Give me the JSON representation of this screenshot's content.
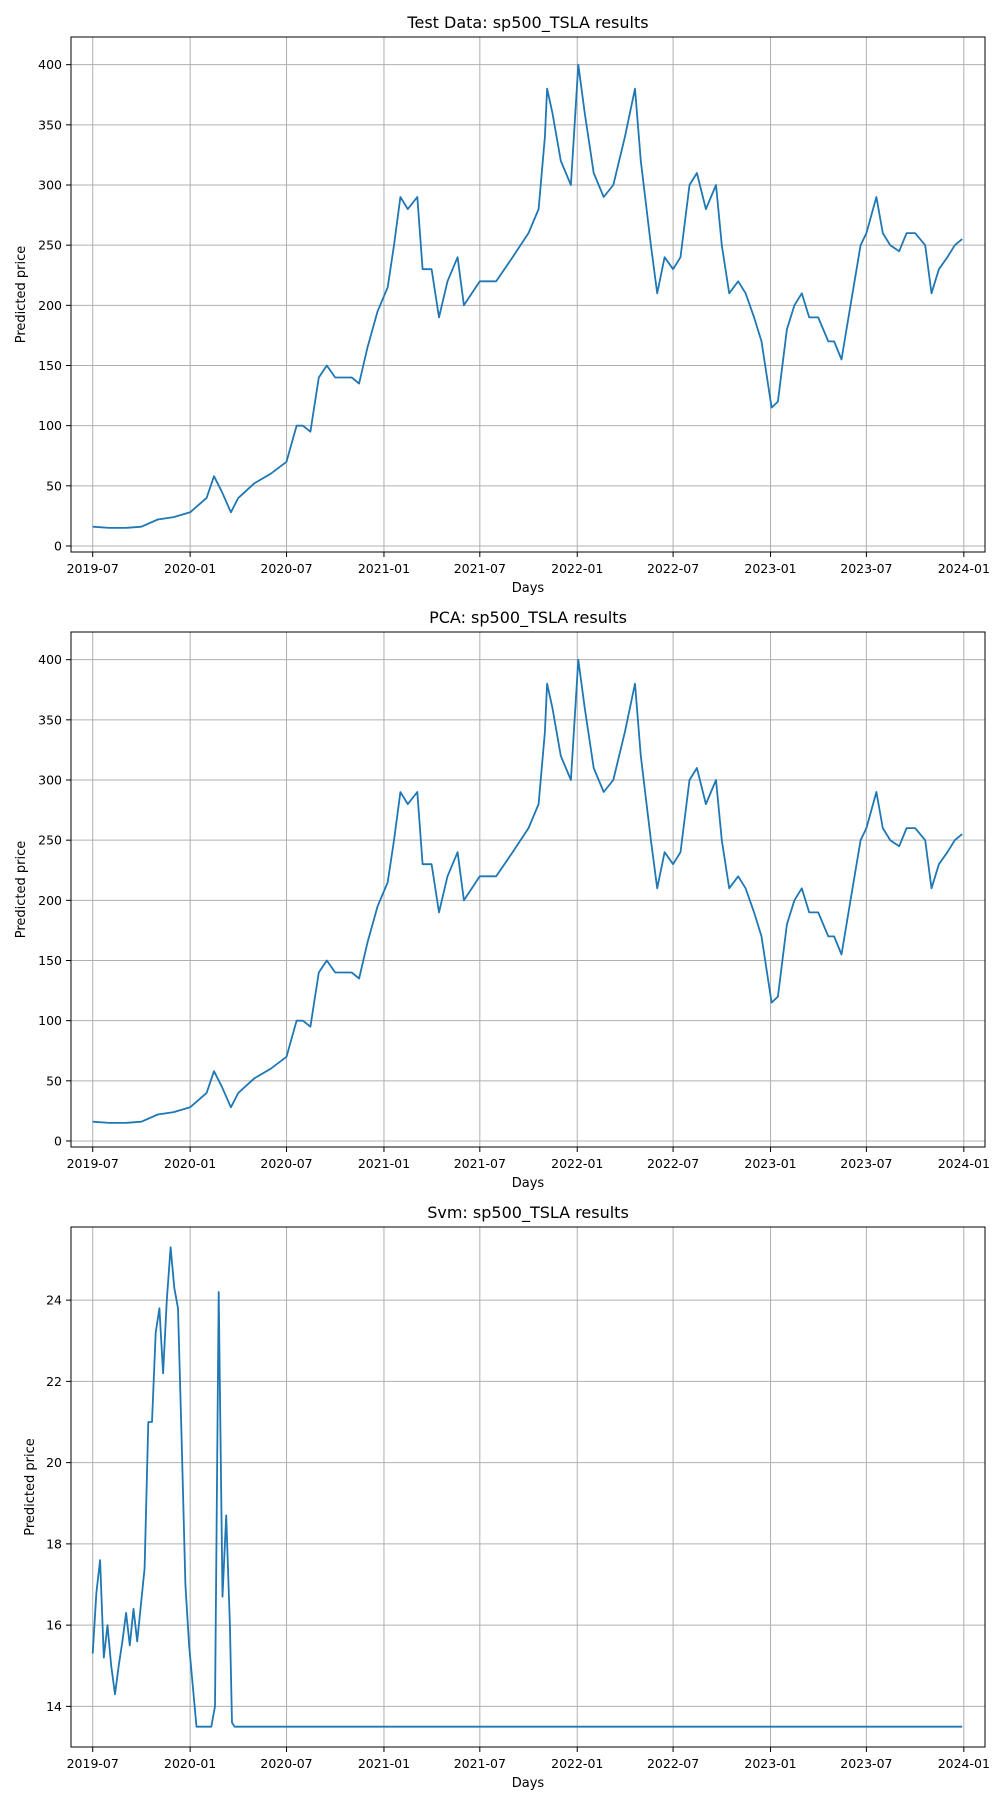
{
  "chart_data": [
    {
      "type": "line",
      "title": "Test Data: sp500_TSLA results",
      "xlabel": "Days",
      "ylabel": "Predicted price",
      "grid": true,
      "x_range": [
        "2019-05-21",
        "2024-02-10"
      ],
      "y_range": [
        -5,
        423
      ],
      "x_ticks": [
        "2019-07",
        "2020-01",
        "2020-07",
        "2021-01",
        "2021-07",
        "2022-01",
        "2022-07",
        "2023-01",
        "2023-07",
        "2024-01"
      ],
      "y_ticks": [
        0,
        50,
        100,
        150,
        200,
        250,
        300,
        350,
        400
      ],
      "series": [
        {
          "color": "#1f77b4",
          "x": [
            "2019-07-01",
            "2019-08-01",
            "2019-09-01",
            "2019-10-01",
            "2019-11-01",
            "2019-12-01",
            "2020-01-01",
            "2020-02-01",
            "2020-02-15",
            "2020-03-01",
            "2020-03-18",
            "2020-04-01",
            "2020-05-01",
            "2020-06-01",
            "2020-07-01",
            "2020-07-20",
            "2020-08-01",
            "2020-08-15",
            "2020-08-31",
            "2020-09-15",
            "2020-10-01",
            "2020-11-01",
            "2020-11-15",
            "2020-12-01",
            "2020-12-20",
            "2021-01-08",
            "2021-01-20",
            "2021-02-01",
            "2021-02-15",
            "2021-03-05",
            "2021-03-15",
            "2021-04-01",
            "2021-04-15",
            "2021-05-01",
            "2021-05-20",
            "2021-06-01",
            "2021-07-01",
            "2021-08-01",
            "2021-09-01",
            "2021-10-01",
            "2021-10-20",
            "2021-11-01",
            "2021-11-05",
            "2021-11-15",
            "2021-12-01",
            "2021-12-20",
            "2022-01-03",
            "2022-01-15",
            "2022-02-01",
            "2022-02-20",
            "2022-03-10",
            "2022-04-01",
            "2022-04-20",
            "2022-05-01",
            "2022-05-20",
            "2022-06-01",
            "2022-06-15",
            "2022-07-01",
            "2022-07-15",
            "2022-08-01",
            "2022-08-15",
            "2022-09-01",
            "2022-09-20",
            "2022-10-01",
            "2022-10-15",
            "2022-11-01",
            "2022-11-15",
            "2022-12-01",
            "2022-12-15",
            "2023-01-03",
            "2023-01-15",
            "2023-02-01",
            "2023-02-15",
            "2023-03-01",
            "2023-03-15",
            "2023-04-01",
            "2023-04-20",
            "2023-05-01",
            "2023-05-15",
            "2023-06-01",
            "2023-06-20",
            "2023-07-01",
            "2023-07-20",
            "2023-08-01",
            "2023-08-15",
            "2023-09-01",
            "2023-09-15",
            "2023-10-01",
            "2023-10-20",
            "2023-11-01",
            "2023-11-15",
            "2023-12-01",
            "2023-12-15",
            "2023-12-29"
          ],
          "y": [
            16,
            15,
            15,
            16,
            22,
            24,
            28,
            40,
            58,
            45,
            28,
            40,
            52,
            60,
            70,
            100,
            100,
            95,
            140,
            150,
            140,
            140,
            135,
            165,
            195,
            215,
            250,
            290,
            280,
            290,
            230,
            230,
            190,
            220,
            240,
            200,
            220,
            220,
            240,
            260,
            280,
            340,
            380,
            360,
            320,
            300,
            400,
            360,
            310,
            290,
            300,
            340,
            380,
            320,
            250,
            210,
            240,
            230,
            240,
            300,
            310,
            280,
            300,
            250,
            210,
            220,
            210,
            190,
            170,
            115,
            120,
            180,
            200,
            210,
            190,
            190,
            170,
            170,
            155,
            200,
            250,
            260,
            290,
            260,
            250,
            245,
            260,
            260,
            250,
            210,
            230,
            240,
            250,
            255
          ]
        }
      ]
    },
    {
      "type": "line",
      "title": "PCA: sp500_TSLA results",
      "xlabel": "Days",
      "ylabel": "Predicted price",
      "grid": true,
      "x_range": [
        "2019-05-21",
        "2024-02-10"
      ],
      "y_range": [
        -5,
        423
      ],
      "x_ticks": [
        "2019-07",
        "2020-01",
        "2020-07",
        "2021-01",
        "2021-07",
        "2022-01",
        "2022-07",
        "2023-01",
        "2023-07",
        "2024-01"
      ],
      "y_ticks": [
        0,
        50,
        100,
        150,
        200,
        250,
        300,
        350,
        400
      ],
      "series": [
        {
          "color": "#1f77b4",
          "x": [
            "2019-07-01",
            "2019-08-01",
            "2019-09-01",
            "2019-10-01",
            "2019-11-01",
            "2019-12-01",
            "2020-01-01",
            "2020-02-01",
            "2020-02-15",
            "2020-03-01",
            "2020-03-18",
            "2020-04-01",
            "2020-05-01",
            "2020-06-01",
            "2020-07-01",
            "2020-07-20",
            "2020-08-01",
            "2020-08-15",
            "2020-08-31",
            "2020-09-15",
            "2020-10-01",
            "2020-11-01",
            "2020-11-15",
            "2020-12-01",
            "2020-12-20",
            "2021-01-08",
            "2021-01-20",
            "2021-02-01",
            "2021-02-15",
            "2021-03-05",
            "2021-03-15",
            "2021-04-01",
            "2021-04-15",
            "2021-05-01",
            "2021-05-20",
            "2021-06-01",
            "2021-07-01",
            "2021-08-01",
            "2021-09-01",
            "2021-10-01",
            "2021-10-20",
            "2021-11-01",
            "2021-11-05",
            "2021-11-15",
            "2021-12-01",
            "2021-12-20",
            "2022-01-03",
            "2022-01-15",
            "2022-02-01",
            "2022-02-20",
            "2022-03-10",
            "2022-04-01",
            "2022-04-20",
            "2022-05-01",
            "2022-05-20",
            "2022-06-01",
            "2022-06-15",
            "2022-07-01",
            "2022-07-15",
            "2022-08-01",
            "2022-08-15",
            "2022-09-01",
            "2022-09-20",
            "2022-10-01",
            "2022-10-15",
            "2022-11-01",
            "2022-11-15",
            "2022-12-01",
            "2022-12-15",
            "2023-01-03",
            "2023-01-15",
            "2023-02-01",
            "2023-02-15",
            "2023-03-01",
            "2023-03-15",
            "2023-04-01",
            "2023-04-20",
            "2023-05-01",
            "2023-05-15",
            "2023-06-01",
            "2023-06-20",
            "2023-07-01",
            "2023-07-20",
            "2023-08-01",
            "2023-08-15",
            "2023-09-01",
            "2023-09-15",
            "2023-10-01",
            "2023-10-20",
            "2023-11-01",
            "2023-11-15",
            "2023-12-01",
            "2023-12-15",
            "2023-12-29"
          ],
          "y": [
            16,
            15,
            15,
            16,
            22,
            24,
            28,
            40,
            58,
            45,
            28,
            40,
            52,
            60,
            70,
            100,
            100,
            95,
            140,
            150,
            140,
            140,
            135,
            165,
            195,
            215,
            250,
            290,
            280,
            290,
            230,
            230,
            190,
            220,
            240,
            200,
            220,
            220,
            240,
            260,
            280,
            340,
            380,
            360,
            320,
            300,
            400,
            360,
            310,
            290,
            300,
            340,
            380,
            320,
            250,
            210,
            240,
            230,
            240,
            300,
            310,
            280,
            300,
            250,
            210,
            220,
            210,
            190,
            170,
            115,
            120,
            180,
            200,
            210,
            190,
            190,
            170,
            170,
            155,
            200,
            250,
            260,
            290,
            260,
            250,
            245,
            260,
            260,
            250,
            210,
            230,
            240,
            250,
            255
          ]
        }
      ]
    },
    {
      "type": "line",
      "title": "Svm: sp500_TSLA results",
      "xlabel": "Days",
      "ylabel": "Predicted price",
      "grid": true,
      "x_range": [
        "2019-05-21",
        "2024-02-10"
      ],
      "y_range": [
        13.0,
        25.8
      ],
      "x_ticks": [
        "2019-07",
        "2020-01",
        "2020-07",
        "2021-01",
        "2021-07",
        "2022-01",
        "2022-07",
        "2023-01",
        "2023-07",
        "2024-01"
      ],
      "y_ticks": [
        14,
        16,
        18,
        20,
        22,
        24
      ],
      "series": [
        {
          "color": "#1f77b4",
          "x": [
            "2019-07-01",
            "2019-07-08",
            "2019-07-15",
            "2019-07-22",
            "2019-07-29",
            "2019-08-05",
            "2019-08-12",
            "2019-08-19",
            "2019-08-26",
            "2019-09-02",
            "2019-09-09",
            "2019-09-16",
            "2019-09-23",
            "2019-09-30",
            "2019-10-07",
            "2019-10-14",
            "2019-10-21",
            "2019-10-28",
            "2019-11-04",
            "2019-11-11",
            "2019-11-18",
            "2019-11-25",
            "2019-12-02",
            "2019-12-09",
            "2019-12-16",
            "2019-12-23",
            "2019-12-30",
            "2020-01-06",
            "2020-01-13",
            "2020-01-20",
            "2020-01-27",
            "2020-02-03",
            "2020-02-10",
            "2020-02-17",
            "2020-02-24",
            "2020-03-02",
            "2020-03-09",
            "2020-03-16",
            "2020-03-20",
            "2020-03-25",
            "2020-03-30",
            "2020-04-06",
            "2020-04-13",
            "2020-04-20",
            "2020-05-01",
            "2020-06-01",
            "2021-01-01",
            "2022-01-01",
            "2023-01-01",
            "2023-12-29"
          ],
          "y": [
            15.3,
            16.8,
            17.6,
            15.2,
            16.0,
            15.0,
            14.3,
            15.0,
            15.6,
            16.3,
            15.5,
            16.4,
            15.6,
            16.5,
            17.4,
            21.0,
            21.0,
            23.2,
            23.8,
            22.2,
            24.0,
            25.3,
            24.3,
            23.8,
            20.5,
            17.0,
            15.5,
            14.5,
            13.5,
            13.5,
            13.5,
            13.5,
            13.5,
            14.0,
            24.2,
            16.7,
            18.7,
            16.0,
            13.6,
            13.5,
            13.5,
            13.5,
            13.5,
            13.5,
            13.5,
            13.5,
            13.5,
            13.5,
            13.5,
            13.5
          ]
        }
      ]
    }
  ]
}
